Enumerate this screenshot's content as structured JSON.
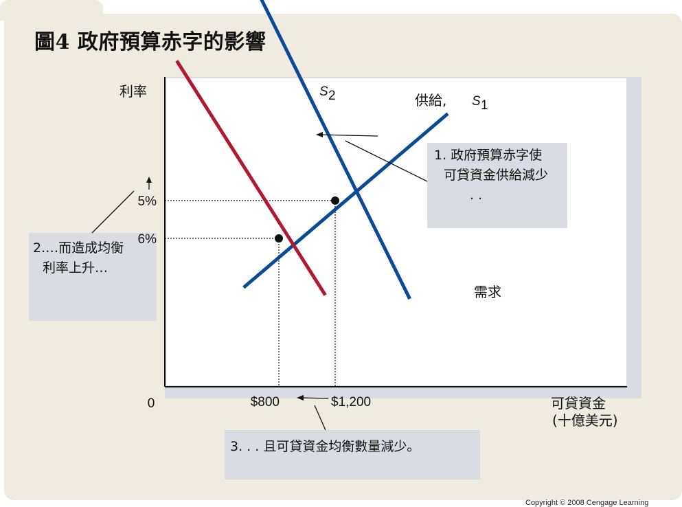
{
  "title": "圖4  政府預算赤字的影響",
  "copyright": "Copyright © 2008 Cengage Learning",
  "notes": {
    "note1": {
      "line1": "1. 政府預算赤字使",
      "line2": "可貸資金供給減少",
      "line3": ". ."
    },
    "note2": {
      "line1": "2.…而造成均衡",
      "line2": "利率上升…"
    },
    "note3": {
      "line1": "3. . . 且可貸資金均衡數量減少。"
    }
  },
  "colors": {
    "supply1": "#0a4a96",
    "supply2": "#b01a2e",
    "demand": "#0a4a96",
    "panel": "#d9dde3",
    "card": "#efebe1"
  },
  "chart_data": {
    "type": "line",
    "title": "圖4  政府預算赤字的影響",
    "ylabel": "利率",
    "xlabel": "可貸資金",
    "xlabel_unit": "(十億美元)",
    "origin_label": "0",
    "x_ticks": [
      {
        "value": 800,
        "label": "$800"
      },
      {
        "value": 1200,
        "label": "$1,200"
      }
    ],
    "y_ticks": [
      {
        "value": 5,
        "label": "5%"
      },
      {
        "value": 6,
        "label": "6%"
      }
    ],
    "series": [
      {
        "name": "需求",
        "label": "需求",
        "points": [
          [
            550,
            7.3
          ],
          [
            2000,
            2.7
          ]
        ]
      },
      {
        "name": "供給, S1",
        "label_prefix": "供給,",
        "label": "S",
        "label_sub": "1",
        "points": [
          [
            600,
            -0.9
          ],
          [
            1730,
            7.6
          ]
        ]
      },
      {
        "name": "S2",
        "label": "S",
        "label_sub": "2",
        "points": [
          [
            75,
            1.3
          ],
          [
            1130,
            7.5
          ]
        ]
      }
    ],
    "equilibria": [
      {
        "x": 800,
        "y": 6
      },
      {
        "x": 1200,
        "y": 5
      }
    ],
    "grid": false
  }
}
